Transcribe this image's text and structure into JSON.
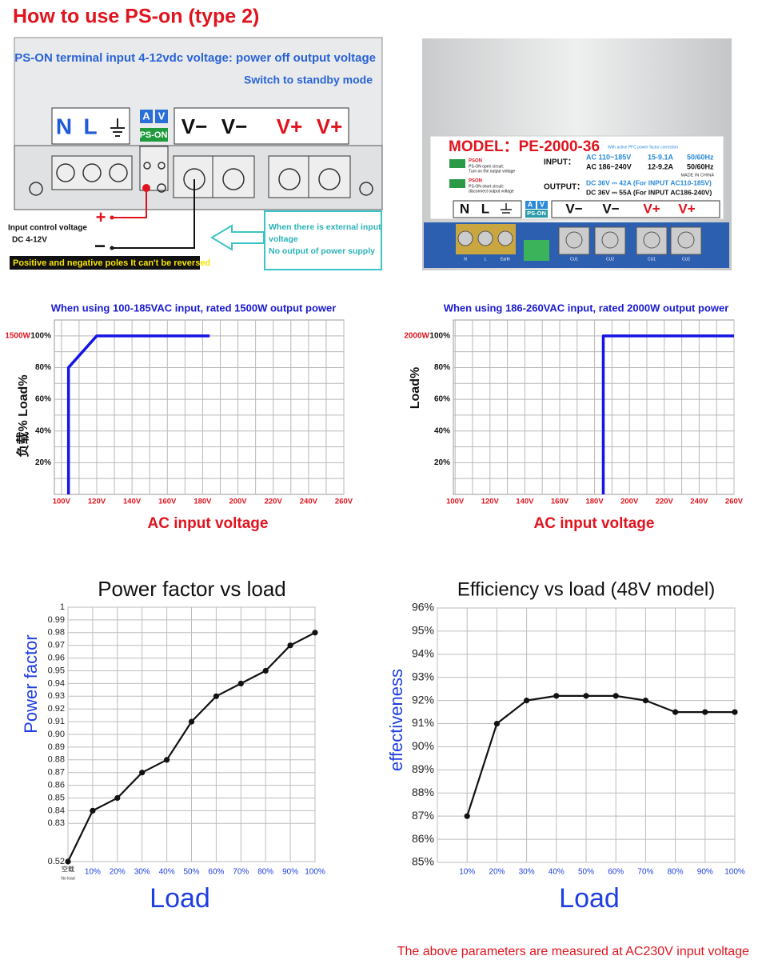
{
  "header": {
    "title": "How to use PS-on (type 2)"
  },
  "diagram": {
    "line1": "PS-ON terminal input 4-12vdc voltage: power off output voltage",
    "line2": "Switch to standby mode",
    "terminals": [
      "N",
      "L"
    ],
    "av": [
      "A",
      "V"
    ],
    "pson": "PS-ON",
    "outputs": [
      "V−",
      "V−",
      "V+",
      "V+"
    ],
    "plus": "+",
    "minus": "−",
    "control_label": "Input control voltage",
    "control_range": "DC 4-12V",
    "warning": "Positive and negative poles It can't be reversed",
    "callout": [
      "When there is external input",
      "voltage",
      "No output of power supply"
    ]
  },
  "product": {
    "model": "MODEL：PE-2000-36",
    "pfc": "With active PFC power factor correction",
    "pson_open": [
      "PSON",
      "PS-ON open circuit:",
      "Turn on the output voltage"
    ],
    "pson_short": [
      "PSON",
      "PS-ON short circuit:",
      "disconnect output voltage"
    ],
    "input_label": "INPUT：",
    "input_rows": [
      [
        "AC 110~185V",
        "15-9.1A",
        "50/60Hz"
      ],
      [
        "AC 186~240V",
        "12-9.2A",
        "50/60Hz"
      ]
    ],
    "made": "MADE IN CHINA",
    "output_label": "OUTPUT：",
    "output_rows": [
      "DC 36V ⎓ 42A (For INPUT AC110-185V)",
      "DC 36V ⎓ 55A (For INPUT AC186-240V)"
    ],
    "terminals": [
      "N",
      "L"
    ],
    "av": [
      "A",
      "V"
    ],
    "pson": "PS-ON",
    "outputs": [
      "V−",
      "V−",
      "V+",
      "V+"
    ],
    "strip": [
      "N",
      "L",
      "Earth",
      "CU1",
      "CU2",
      "CU1",
      "CU2"
    ]
  },
  "chart_data": [
    {
      "type": "line",
      "title": "When using 100-185VAC input, rated 1500W output power",
      "annotation": "1500W",
      "y_label": "负载%  Load%",
      "x_label": "AC input voltage",
      "color": "#1414e6",
      "x": [
        104,
        104,
        120,
        184
      ],
      "values": [
        0,
        80,
        100,
        100
      ],
      "xlim": [
        96,
        260
      ],
      "xticks": [
        {
          "value": 100,
          "label": "100V"
        },
        {
          "value": 120,
          "label": "120V"
        },
        {
          "value": 140,
          "label": "140V"
        },
        {
          "value": 160,
          "label": "160V"
        },
        {
          "value": 180,
          "label": "180V"
        },
        {
          "value": 200,
          "label": "200V"
        },
        {
          "value": 220,
          "label": "220V"
        },
        {
          "value": 240,
          "label": "240V"
        },
        {
          "value": 260,
          "label": "260V"
        }
      ],
      "minor_xticks": [
        110,
        130,
        150,
        170,
        190,
        210,
        230,
        250
      ],
      "ylim": [
        0,
        110
      ],
      "yticks": [
        {
          "value": 20,
          "label": "20%"
        },
        {
          "value": 40,
          "label": "40%"
        },
        {
          "value": 60,
          "label": "60%"
        },
        {
          "value": 80,
          "label": "80%"
        },
        {
          "value": 100,
          "label": "100%"
        }
      ],
      "minor_yticks": [
        10,
        30,
        50,
        70,
        90
      ],
      "grid": true,
      "markers": false
    },
    {
      "type": "line",
      "title": "When using 186-260VAC input, rated 2000W output power",
      "annotation": "2000W",
      "y_label": "Load%",
      "x_label": "AC input voltage",
      "color": "#1414e6",
      "x": [
        185,
        185,
        260
      ],
      "values": [
        0,
        100,
        100
      ],
      "xlim": [
        99,
        260
      ],
      "xticks": [
        {
          "value": 100,
          "label": "100V"
        },
        {
          "value": 120,
          "label": "120V"
        },
        {
          "value": 140,
          "label": "140V"
        },
        {
          "value": 160,
          "label": "160V"
        },
        {
          "value": 180,
          "label": "180V"
        },
        {
          "value": 200,
          "label": "200V"
        },
        {
          "value": 220,
          "label": "220V"
        },
        {
          "value": 240,
          "label": "240V"
        },
        {
          "value": 260,
          "label": "260V"
        }
      ],
      "minor_xticks": [
        110,
        130,
        150,
        170,
        190,
        210,
        230,
        250
      ],
      "ylim": [
        0,
        110
      ],
      "yticks": [
        {
          "value": 20,
          "label": "20%"
        },
        {
          "value": 40,
          "label": "40%"
        },
        {
          "value": 60,
          "label": "60%"
        },
        {
          "value": 80,
          "label": "80%"
        },
        {
          "value": 100,
          "label": "100%"
        }
      ],
      "minor_yticks": [
        10,
        30,
        50,
        70,
        90
      ],
      "grid": true,
      "markers": false
    },
    {
      "type": "line",
      "title": "Power factor vs load",
      "y_label": "Power factor",
      "x_label": "Load",
      "color": "#111111",
      "categories": [
        "空载",
        "10%",
        "20%",
        "30%",
        "40%",
        "50%",
        "60%",
        "70%",
        "80%",
        "90%",
        "100%"
      ],
      "first_category_note": "No load",
      "values": [
        0.52,
        0.84,
        0.85,
        0.87,
        0.88,
        0.91,
        0.93,
        0.94,
        0.95,
        0.97,
        0.98
      ],
      "ylim": [
        0.52,
        1
      ],
      "yticks": [
        0.52,
        0.83,
        0.84,
        0.85,
        0.86,
        0.87,
        0.88,
        0.89,
        {
          "value": 0.9,
          "label": "0.90"
        },
        0.91,
        0.92,
        0.93,
        0.94,
        0.95,
        0.96,
        0.97,
        0.98,
        0.99,
        1
      ],
      "grid": true,
      "markers": true
    },
    {
      "type": "line",
      "title": "Efficiency vs load (48V model)",
      "y_label": "effectiveness",
      "x_label": "Load",
      "color": "#111111",
      "categories": [
        null,
        "10%",
        "20%",
        "30%",
        "40%",
        "50%",
        "60%",
        "70%",
        "80%",
        "90%",
        "100%"
      ],
      "values": [
        null,
        87,
        91,
        92,
        92.2,
        92.2,
        92.2,
        92,
        91.5,
        91.5,
        91.5
      ],
      "ylim": [
        85,
        96
      ],
      "yticks": [
        {
          "value": 85,
          "label": "85%"
        },
        {
          "value": 86,
          "label": "86%"
        },
        {
          "value": 87,
          "label": "87%"
        },
        {
          "value": 88,
          "label": "88%"
        },
        {
          "value": 89,
          "label": "89%"
        },
        {
          "value": 90,
          "label": "90%"
        },
        {
          "value": 91,
          "label": "91%"
        },
        {
          "value": 92,
          "label": "92%"
        },
        {
          "value": 93,
          "label": "93%"
        },
        {
          "value": 94,
          "label": "94%"
        },
        {
          "value": 95,
          "label": "95%"
        },
        {
          "value": 96,
          "label": "96%"
        }
      ],
      "grid": true,
      "markers": true
    }
  ],
  "footer": "The above parameters are measured at AC230V input voltage"
}
